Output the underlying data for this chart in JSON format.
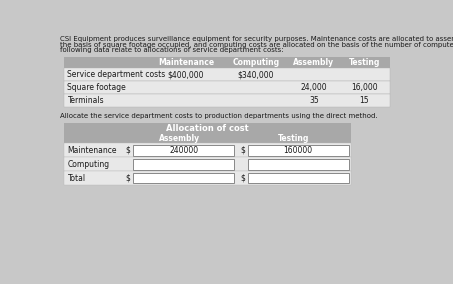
{
  "para_line1": "CSI Equipment produces surveillance equipment for security purposes. Maintenance costs are allocated to assembly and testing on",
  "para_line2": "the basis of square footage occupied, and computing costs are allocated on the basis of the number of computer terminals. The",
  "para_line3": "following data relate to allocations of service department costs:",
  "table1_headers": [
    "Maintenance",
    "Computing",
    "Assembly",
    "Testing"
  ],
  "table1_rows": [
    [
      "Service department costs",
      "$400,000",
      "$340,000",
      "",
      ""
    ],
    [
      "Square footage",
      "",
      "",
      "24,000",
      "16,000"
    ],
    [
      "Terminals",
      "",
      "",
      "35",
      "15"
    ]
  ],
  "alloc_title": "Allocate the service department costs to production departments using the direct method.",
  "alloc_header_main": "Allocation of cost",
  "alloc_rows": [
    [
      "Maintenance",
      "$",
      "240000",
      "$",
      "160000"
    ],
    [
      "Computing",
      "",
      "",
      "",
      ""
    ],
    [
      "Total",
      "$",
      "",
      "$",
      ""
    ]
  ],
  "bg_color": "#c8c8c8",
  "header_bg": "#a8a8a8",
  "body_bg": "#e8e8e8",
  "white": "#ffffff",
  "text_color": "#1a1a1a",
  "border_color": "#999999"
}
